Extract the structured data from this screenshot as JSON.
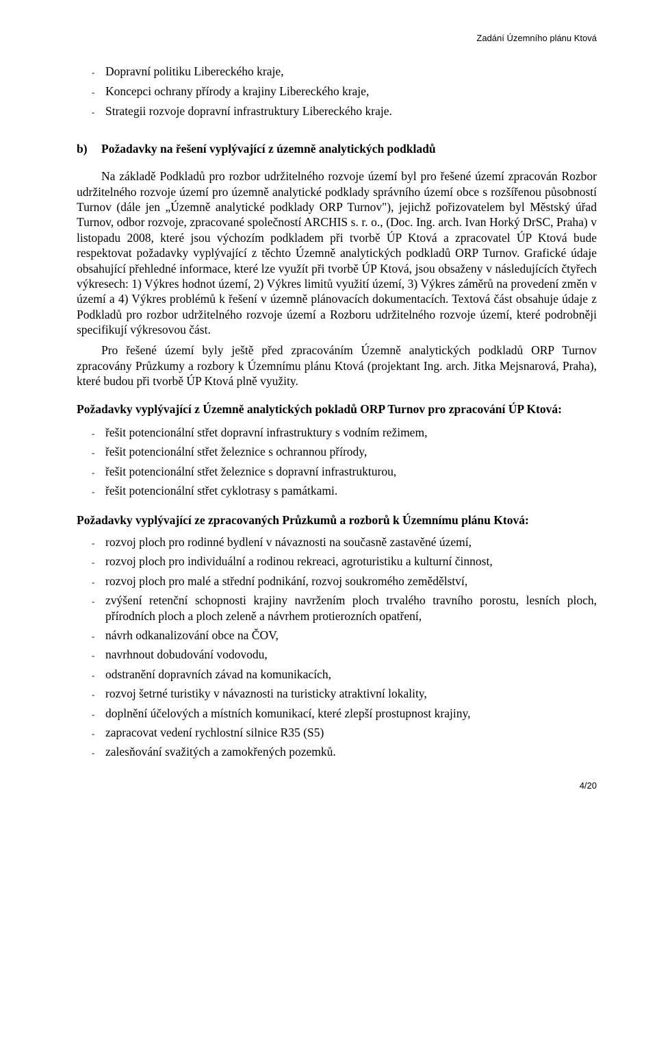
{
  "header": {
    "right": "Zadání Územního plánu Ktová"
  },
  "topList": {
    "items": [
      "Dopravní politiku Libereckého kraje,",
      "Koncepci ochrany přírody a krajiny Libereckého kraje,",
      "Strategii rozvoje dopravní infrastruktury Libereckého kraje."
    ]
  },
  "sectionB": {
    "label": "b)",
    "title": "Požadavky na řešení vyplývající z územně analytických podkladů",
    "para1": "Na základě Podkladů pro rozbor udržitelného rozvoje území byl pro řešené území zpracován Rozbor udržitelného rozvoje území pro územně analytické podklady správního území obce s rozšířenou působností Turnov (dále jen „Územně analytické podklady ORP Turnov\"), jejichž pořizovatelem byl Městský úřad Turnov, odbor rozvoje, zpracované společností ARCHIS s. r. o., (Doc. Ing. arch. Ivan Horký DrSC,  Praha) v listopadu 2008, které jsou výchozím podkladem při tvorbě ÚP Ktová a zpracovatel ÚP Ktová bude respektovat požadavky vyplývající z těchto Územně analytických podkladů ORP Turnov. Grafické údaje obsahující přehledné informace, které lze využít při tvorbě ÚP Ktová, jsou obsaženy v následujících čtyřech výkresech: 1) Výkres hodnot území, 2) Výkres limitů využití území, 3) Výkres záměrů na provedení změn v území a 4) Výkres problémů k řešení v územně plánovacích dokumentacích. Textová část obsahuje údaje z Podkladů pro rozbor udržitelného rozvoje území a Rozboru udržitelného rozvoje území, které podrobněji specifikují výkresovou část.",
    "para2": "Pro řešené území byly ještě před zpracováním Územně analytických podkladů ORP Turnov zpracovány Průzkumy a rozbory k Územnímu plánu Ktová (projektant Ing. arch. Jitka Mejsnarová, Praha), které budou při tvorbě ÚP Ktová plně využity."
  },
  "req1": {
    "heading": "Požadavky vyplývající z Územně analytických pokladů ORP Turnov pro zpracování ÚP Ktová:",
    "items": [
      "řešit potencionální střet dopravní infrastruktury s vodním režimem,",
      "řešit potencionální střet železnice s ochrannou přírody,",
      "řešit potencionální střet železnice s dopravní infrastrukturou,",
      "řešit potencionální střet cyklotrasy s památkami."
    ]
  },
  "req2": {
    "heading": "Požadavky vyplývající ze zpracovaných Průzkumů a rozborů k Územnímu plánu Ktová:",
    "items": [
      "rozvoj ploch pro rodinné bydlení v návaznosti na současně zastavěné území,",
      "rozvoj ploch pro individuální a rodinou rekreaci, agroturistiku a kulturní činnost,",
      "rozvoj ploch pro malé a střední podnikání, rozvoj soukromého zemědělství,",
      "zvýšení retenční schopnosti krajiny navržením ploch trvalého travního porostu, lesních ploch, přírodních ploch a ploch zeleně a návrhem protierozních opatření,",
      "návrh odkanalizování obce na ČOV,",
      "navrhnout dobudování vodovodu,",
      "odstranění dopravních závad na komunikacích,",
      "rozvoj šetrné turistiky v návaznosti na turisticky atraktivní lokality,",
      "doplnění účelových a místních komunikací, které zlepší prostupnost krajiny,",
      "zapracovat vedení rychlostní silnice R35 (S5)",
      "zalesňování svažitých a zamokřených pozemků."
    ]
  },
  "footer": {
    "page": "4/20"
  }
}
